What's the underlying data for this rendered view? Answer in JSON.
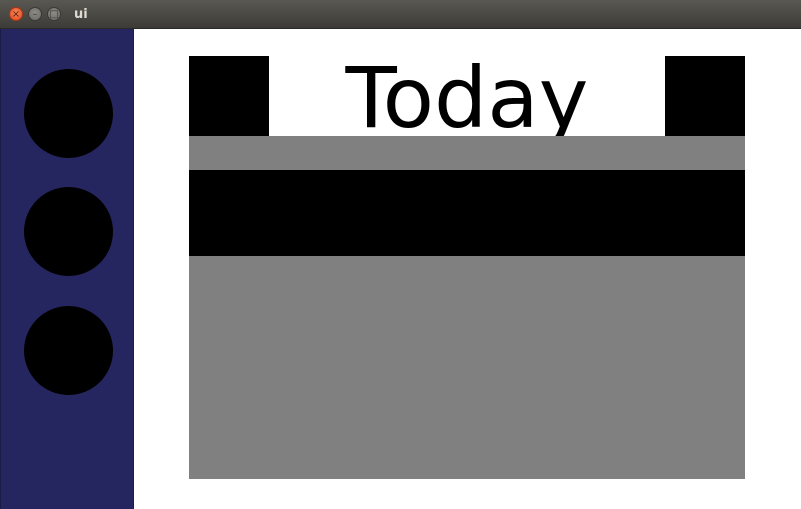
{
  "window": {
    "title": "ui",
    "buttons": {
      "close_icon": "close-icon",
      "minimize_icon": "minimize-icon",
      "maximize_icon": "maximize-icon"
    }
  },
  "sidebar": {
    "background": "#25265f",
    "items": [
      {
        "shape": "circle",
        "color": "#000000"
      },
      {
        "shape": "circle",
        "color": "#000000"
      },
      {
        "shape": "circle",
        "color": "#000000"
      }
    ]
  },
  "main": {
    "header": {
      "title": "Today"
    },
    "colors": {
      "panel": "#808080",
      "band": "#000000",
      "header_buttons": "#000000"
    }
  }
}
